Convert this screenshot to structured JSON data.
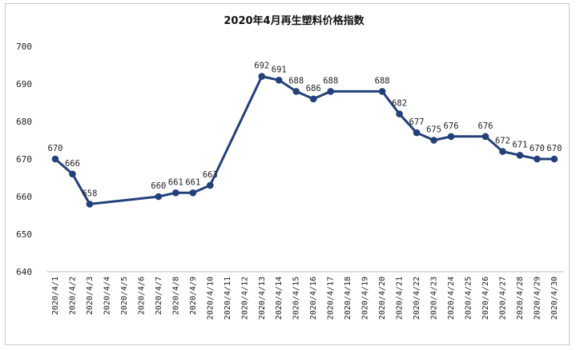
{
  "chart_data": {
    "type": "line",
    "title": "2020年4月再生塑料价格指数",
    "xlabel": "",
    "ylabel": "",
    "ylim": [
      640,
      700
    ],
    "yticks": [
      640,
      650,
      660,
      670,
      680,
      690,
      700
    ],
    "grid": false,
    "legend": "none",
    "line_color": "#23407a",
    "categories": [
      "2020/4/1",
      "2020/4/2",
      "2020/4/3",
      "2020/4/4",
      "2020/4/5",
      "2020/4/6",
      "2020/4/7",
      "2020/4/8",
      "2020/4/9",
      "2020/4/10",
      "2020/4/11",
      "2020/4/12",
      "2020/4/13",
      "2020/4/14",
      "2020/4/15",
      "2020/4/16",
      "2020/4/17",
      "2020/4/18",
      "2020/4/19",
      "2020/4/20",
      "2020/4/21",
      "2020/4/22",
      "2020/4/23",
      "2020/4/24",
      "2020/4/25",
      "2020/4/26",
      "2020/4/27",
      "2020/4/28",
      "2020/4/29",
      "2020/4/30"
    ],
    "points": [
      {
        "x": "2020/4/1",
        "y": 670
      },
      {
        "x": "2020/4/2",
        "y": 666
      },
      {
        "x": "2020/4/3",
        "y": 658,
        "label": "658"
      },
      {
        "x": "2020/4/7",
        "y": 660
      },
      {
        "x": "2020/4/8",
        "y": 661
      },
      {
        "x": "2020/4/9",
        "y": 661
      },
      {
        "x": "2020/4/10",
        "y": 663
      },
      {
        "x": "2020/4/13",
        "y": 692
      },
      {
        "x": "2020/4/14",
        "y": 691
      },
      {
        "x": "2020/4/15",
        "y": 688
      },
      {
        "x": "2020/4/16",
        "y": 686
      },
      {
        "x": "2020/4/17",
        "y": 688
      },
      {
        "x": "2020/4/20",
        "y": 688
      },
      {
        "x": "2020/4/21",
        "y": 682
      },
      {
        "x": "2020/4/22",
        "y": 677
      },
      {
        "x": "2020/4/23",
        "y": 675
      },
      {
        "x": "2020/4/24",
        "y": 676
      },
      {
        "x": "2020/4/26",
        "y": 676
      },
      {
        "x": "2020/4/27",
        "y": 672
      },
      {
        "x": "2020/4/28",
        "y": 671
      },
      {
        "x": "2020/4/29",
        "y": 670
      },
      {
        "x": "2020/4/30",
        "y": 670
      }
    ]
  }
}
